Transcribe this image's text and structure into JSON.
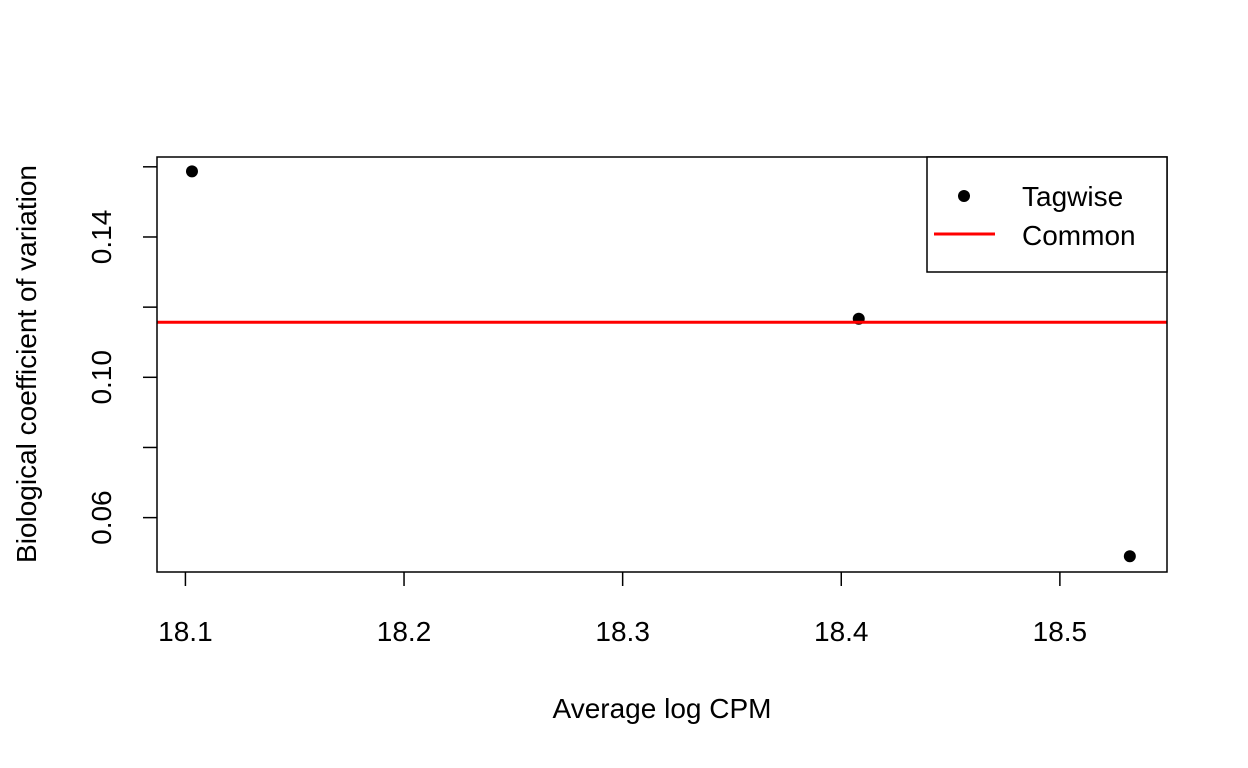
{
  "chart_data": {
    "type": "scatter",
    "xlabel": "Average log CPM",
    "ylabel": "Biological coefficient of variation",
    "xlim": [
      18.087,
      18.549
    ],
    "ylim": [
      0.0445,
      0.1628
    ],
    "x_ticks": [
      "18.1",
      "18.2",
      "18.3",
      "18.4",
      "18.5"
    ],
    "x_tick_values": [
      18.1,
      18.2,
      18.3,
      18.4,
      18.5
    ],
    "y_ticks": [
      "0.06",
      "",
      "0.10",
      "",
      "0.14",
      ""
    ],
    "y_tick_values": [
      0.06,
      0.08,
      0.1,
      0.12,
      0.14,
      0.16
    ],
    "series": [
      {
        "name": "Tagwise",
        "kind": "points",
        "color": "#000000",
        "x": [
          18.103,
          18.408,
          18.532
        ],
        "y": [
          0.1587,
          0.1167,
          0.049
        ]
      },
      {
        "name": "Common",
        "kind": "hline",
        "color": "#ff0000",
        "y": 0.1157
      }
    ],
    "legend": {
      "position": "top-right",
      "entries": [
        "Tagwise",
        "Common"
      ]
    },
    "grid": false
  }
}
